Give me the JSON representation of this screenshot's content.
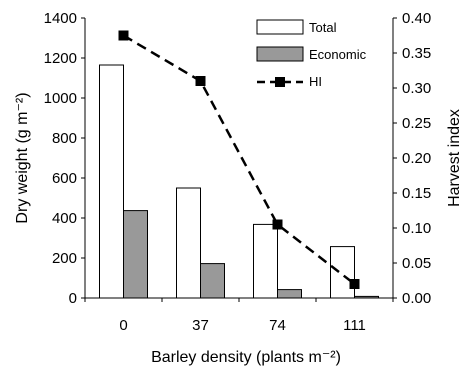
{
  "chart_data": {
    "type": "bar",
    "categories": [
      "0",
      "37",
      "74",
      "111"
    ],
    "series": [
      {
        "name": "Total",
        "kind": "bar",
        "axis": "left",
        "color": "#ffffff",
        "values": [
          1165,
          550,
          368,
          257
        ]
      },
      {
        "name": "Economic",
        "kind": "bar",
        "axis": "left",
        "color": "#999999",
        "values": [
          437,
          172,
          42,
          8
        ]
      },
      {
        "name": "HI",
        "kind": "line",
        "axis": "right",
        "color": "#000000",
        "line_style": "dashed",
        "marker": "square",
        "values": [
          0.375,
          0.31,
          0.105,
          0.02
        ]
      }
    ],
    "title": "",
    "xlabel": "Barley density (plants m⁻²)",
    "ylabel": "Dry weight (g m⁻²)",
    "y2label": "Harvest index",
    "ylim": [
      0,
      1400
    ],
    "y2lim": [
      0,
      0.4
    ],
    "yticks": [
      "0",
      "200",
      "400",
      "600",
      "800",
      "1000",
      "1200",
      "1400"
    ],
    "y2ticks": [
      "0.00",
      "0.05",
      "0.10",
      "0.15",
      "0.20",
      "0.25",
      "0.30",
      "0.35",
      "0.40"
    ],
    "grid": false,
    "legend": {
      "placement": "top-right",
      "items": [
        {
          "label": "Total",
          "swatch": "bar-white"
        },
        {
          "label": "Economic",
          "swatch": "bar-gray"
        },
        {
          "label": "HI",
          "swatch": "dashed-line-square"
        }
      ]
    }
  }
}
